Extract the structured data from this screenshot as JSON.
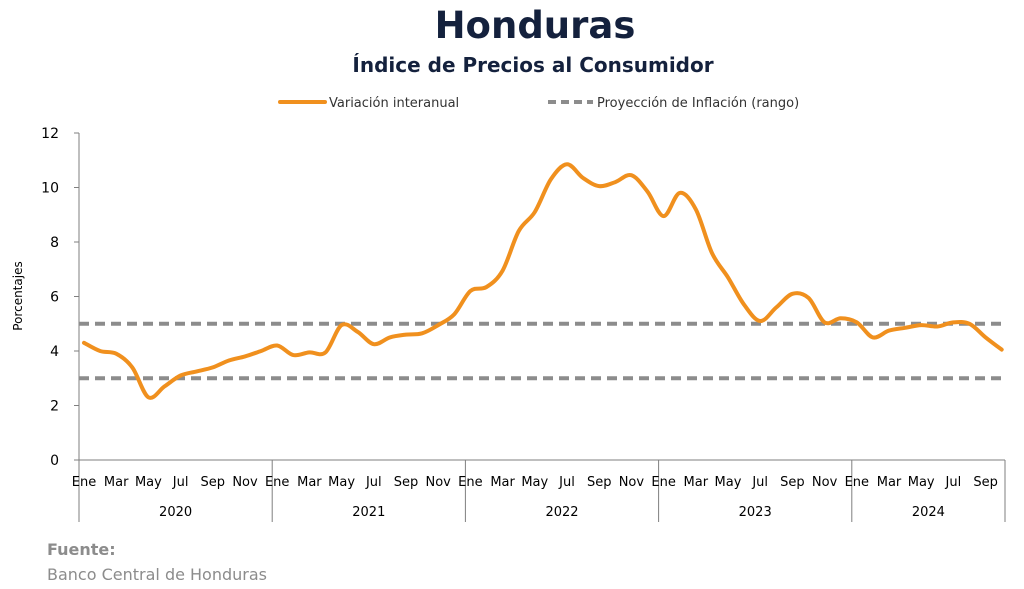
{
  "chart_data": {
    "type": "line",
    "title": "Honduras",
    "subtitle": "Índice de Precios al Consumidor",
    "ylabel": "Porcentajes",
    "xlabel": "",
    "ylim": [
      0,
      12
    ],
    "yticks": [
      0,
      2,
      4,
      6,
      8,
      10,
      12
    ],
    "grid": false,
    "legend_position": "top",
    "month_tick_labels": [
      "Ene",
      "Mar",
      "May",
      "Jul",
      "Sep",
      "Nov"
    ],
    "years": [
      "2020",
      "2021",
      "2022",
      "2023",
      "2024"
    ],
    "series": [
      {
        "name": "Variación interanual",
        "color": "#f0901e",
        "style": "solid",
        "x": [
          "2020-01",
          "2020-02",
          "2020-03",
          "2020-04",
          "2020-05",
          "2020-06",
          "2020-07",
          "2020-08",
          "2020-09",
          "2020-10",
          "2020-11",
          "2020-12",
          "2021-01",
          "2021-02",
          "2021-03",
          "2021-04",
          "2021-05",
          "2021-06",
          "2021-07",
          "2021-08",
          "2021-09",
          "2021-10",
          "2021-11",
          "2021-12",
          "2022-01",
          "2022-02",
          "2022-03",
          "2022-04",
          "2022-05",
          "2022-06",
          "2022-07",
          "2022-08",
          "2022-09",
          "2022-10",
          "2022-11",
          "2022-12",
          "2023-01",
          "2023-02",
          "2023-03",
          "2023-04",
          "2023-05",
          "2023-06",
          "2023-07",
          "2023-08",
          "2023-09",
          "2023-10",
          "2023-11",
          "2023-12",
          "2024-01",
          "2024-02",
          "2024-03",
          "2024-04",
          "2024-05",
          "2024-06",
          "2024-07",
          "2024-08",
          "2024-09",
          "2024-10"
        ],
        "values": [
          4.3,
          4.0,
          3.9,
          3.4,
          2.3,
          2.7,
          3.1,
          3.25,
          3.4,
          3.65,
          3.8,
          4.0,
          4.2,
          3.85,
          3.95,
          3.95,
          4.95,
          4.7,
          4.25,
          4.5,
          4.6,
          4.65,
          4.95,
          5.35,
          6.2,
          6.35,
          6.95,
          8.4,
          9.1,
          10.3,
          10.85,
          10.35,
          10.05,
          10.2,
          10.45,
          9.85,
          8.95,
          9.8,
          9.2,
          7.6,
          6.7,
          5.7,
          5.1,
          5.6,
          6.1,
          5.95,
          5.05,
          5.2,
          5.05,
          4.5,
          4.75,
          4.85,
          4.95,
          4.9,
          5.05,
          5.0,
          4.5,
          4.05
        ]
      },
      {
        "name": "Proyección de Inflación (rango)",
        "color": "#8c8c8c",
        "style": "dashed",
        "range": [
          3.0,
          5.0
        ]
      }
    ]
  },
  "source": {
    "label": "Fuente:",
    "text": "Banco Central de Honduras"
  }
}
